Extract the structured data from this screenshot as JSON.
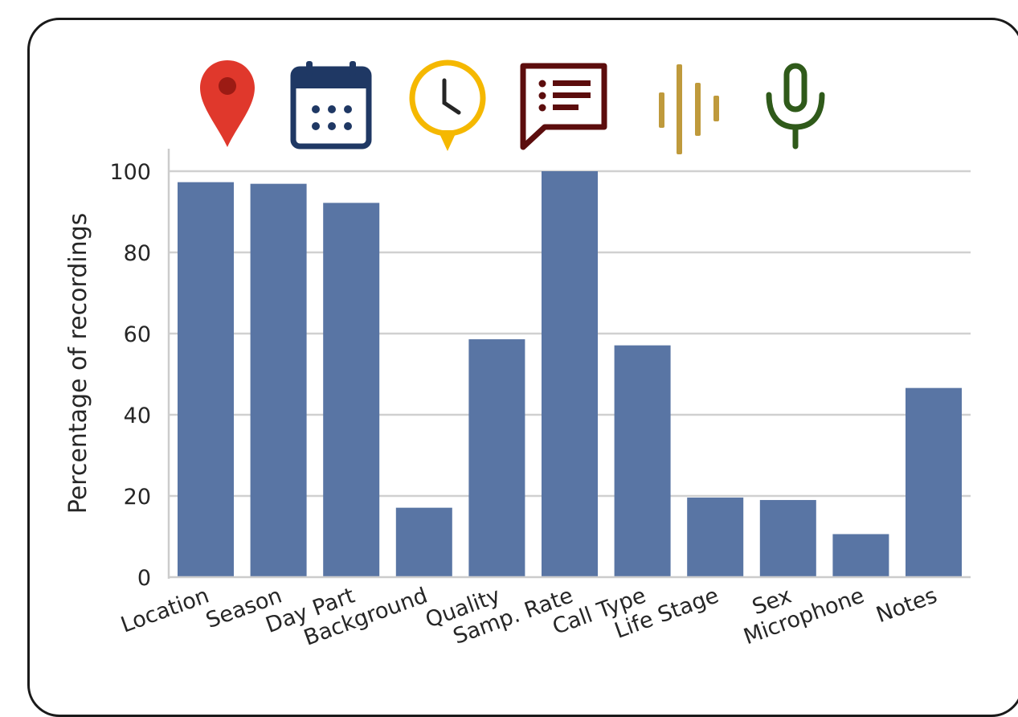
{
  "chart_data": {
    "type": "bar",
    "title": "",
    "xlabel": "",
    "ylabel": "Percentage of recordings",
    "ylim": [
      0,
      100
    ],
    "yticks": [
      0,
      20,
      40,
      60,
      80,
      100
    ],
    "grid": true,
    "bar_color": "#5975a4",
    "categories": [
      "Location",
      "Season",
      "Day Part",
      "Background",
      "Quality",
      "Samp. Rate",
      "Call Type",
      "Life Stage",
      "Sex",
      "Microphone",
      "Notes"
    ],
    "values": [
      97.3,
      96.9,
      92.2,
      17.1,
      58.6,
      100,
      57.1,
      19.6,
      19.0,
      10.6,
      46.6
    ]
  },
  "icons": [
    {
      "name": "location-pin-icon",
      "color": "#e0382c"
    },
    {
      "name": "calendar-icon",
      "color": "#1f3864"
    },
    {
      "name": "clock-icon",
      "color": "#f5b800"
    },
    {
      "name": "notes-speech-bubble-icon",
      "color": "#5c0d0d"
    },
    {
      "name": "sound-wave-icon",
      "color": "#bf9a3c"
    },
    {
      "name": "microphone-icon",
      "color": "#2f5a1a"
    }
  ]
}
